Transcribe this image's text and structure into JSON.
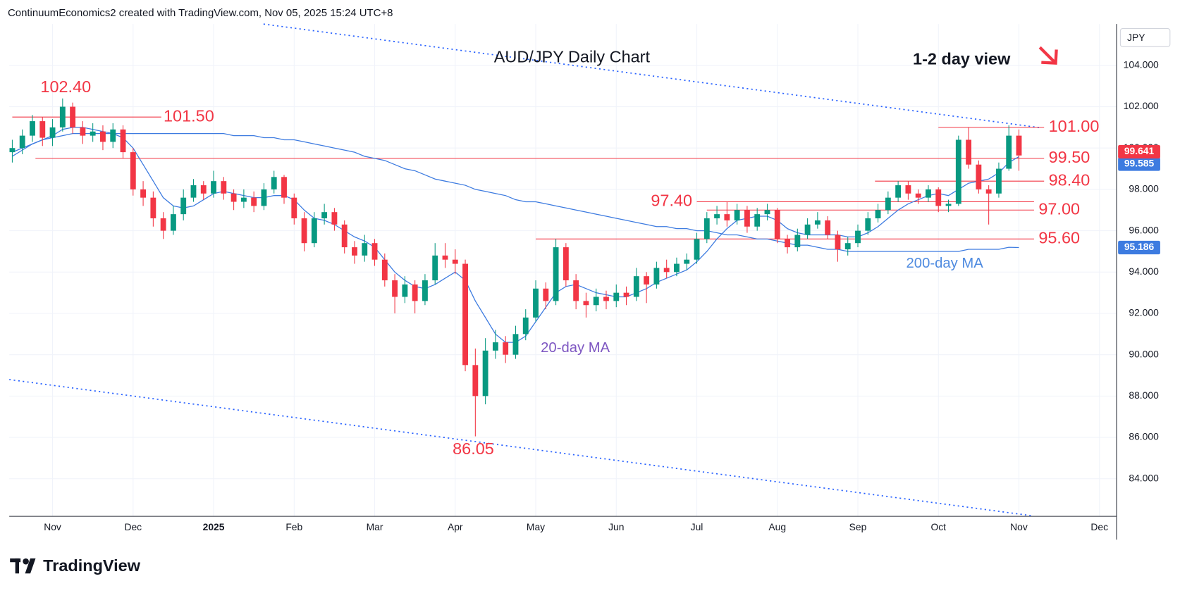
{
  "chart_data": {
    "type": "candlestick",
    "header": "ContinuumEconomics2 created with TradingView.com, Nov 05, 2025 15:24 UTC+8",
    "title": "AUD/JPY Daily Chart",
    "subtitle": "1-2 day view",
    "axis_label": "JPY",
    "brand": "TradingView",
    "ylim": [
      82.18,
      106.0
    ],
    "yticks": [
      {
        "value": 84,
        "label": "84.000"
      },
      {
        "value": 86,
        "label": "86.000"
      },
      {
        "value": 88,
        "label": "88.000"
      },
      {
        "value": 90,
        "label": "90.000"
      },
      {
        "value": 92,
        "label": "92.000"
      },
      {
        "value": 94,
        "label": "94.000"
      },
      {
        "value": 96,
        "label": "96.000"
      },
      {
        "value": 98,
        "label": "98.000"
      },
      {
        "value": 100,
        "label": "100.000"
      },
      {
        "value": 102,
        "label": "102.000"
      },
      {
        "value": 104,
        "label": "104.000"
      }
    ],
    "xlim": [
      -0.3,
      109.7
    ],
    "xticks": [
      {
        "value": 4,
        "label": "Nov"
      },
      {
        "value": 12,
        "label": "Dec"
      },
      {
        "value": 20,
        "label": "2025"
      },
      {
        "value": 28,
        "label": "Feb"
      },
      {
        "value": 36,
        "label": "Mar"
      },
      {
        "value": 44,
        "label": "Apr"
      },
      {
        "value": 52,
        "label": "May"
      },
      {
        "value": 60,
        "label": "Jun"
      },
      {
        "value": 68,
        "label": "Jul"
      },
      {
        "value": 76,
        "label": "Aug"
      },
      {
        "value": 84,
        "label": "Sep"
      },
      {
        "value": 92,
        "label": "Oct"
      },
      {
        "value": 100,
        "label": "Nov"
      },
      {
        "value": 108,
        "label": "Dec"
      }
    ],
    "grid": true,
    "up_color": "#089981",
    "down_color": "#f23645",
    "level_color": "#f23645",
    "ohlc": [
      [
        99.8,
        100.4,
        99.3,
        100.0
      ],
      [
        100.0,
        100.9,
        99.7,
        100.6
      ],
      [
        100.6,
        101.6,
        100.3,
        101.3
      ],
      [
        101.3,
        101.5,
        100.1,
        100.5
      ],
      [
        100.5,
        101.4,
        100.1,
        101.0
      ],
      [
        101.0,
        102.4,
        100.8,
        102.0
      ],
      [
        102.0,
        102.2,
        100.7,
        101.0
      ],
      [
        101.0,
        101.3,
        100.2,
        100.6
      ],
      [
        100.6,
        101.2,
        100.3,
        100.8
      ],
      [
        100.8,
        101.1,
        99.9,
        100.3
      ],
      [
        100.3,
        101.2,
        100.0,
        100.9
      ],
      [
        100.9,
        101.1,
        99.5,
        99.8
      ],
      [
        99.8,
        100.0,
        97.7,
        98.0
      ],
      [
        98.0,
        98.4,
        97.2,
        97.6
      ],
      [
        97.6,
        97.9,
        96.2,
        96.6
      ],
      [
        96.6,
        96.9,
        95.6,
        96.0
      ],
      [
        96.0,
        97.2,
        95.8,
        96.8
      ],
      [
        96.8,
        98.0,
        96.5,
        97.6
      ],
      [
        97.6,
        98.5,
        97.4,
        98.2
      ],
      [
        98.2,
        98.4,
        97.5,
        97.8
      ],
      [
        97.8,
        98.9,
        97.6,
        98.4
      ],
      [
        98.4,
        98.6,
        97.5,
        97.8
      ],
      [
        97.8,
        98.0,
        97.0,
        97.4
      ],
      [
        97.4,
        98.0,
        97.1,
        97.6
      ],
      [
        97.6,
        97.9,
        96.9,
        97.2
      ],
      [
        97.2,
        98.3,
        97.0,
        98.0
      ],
      [
        98.0,
        98.9,
        97.8,
        98.6
      ],
      [
        98.6,
        98.7,
        97.3,
        97.6
      ],
      [
        97.6,
        97.8,
        96.3,
        96.6
      ],
      [
        96.6,
        96.9,
        95.0,
        95.4
      ],
      [
        95.4,
        96.9,
        95.2,
        96.6
      ],
      [
        96.6,
        97.3,
        96.3,
        96.9
      ],
      [
        96.9,
        97.1,
        96.0,
        96.3
      ],
      [
        96.3,
        96.5,
        94.9,
        95.2
      ],
      [
        95.2,
        95.5,
        94.4,
        94.8
      ],
      [
        94.8,
        95.8,
        94.5,
        95.4
      ],
      [
        95.4,
        95.6,
        94.3,
        94.6
      ],
      [
        94.6,
        94.9,
        93.3,
        93.6
      ],
      [
        93.6,
        93.9,
        92.0,
        92.8
      ],
      [
        92.8,
        93.8,
        92.5,
        93.4
      ],
      [
        93.4,
        93.6,
        92.0,
        92.6
      ],
      [
        92.6,
        93.9,
        92.4,
        93.6
      ],
      [
        93.6,
        95.4,
        93.4,
        94.8
      ],
      [
        94.8,
        95.4,
        94.2,
        94.6
      ],
      [
        94.6,
        95.1,
        93.9,
        94.4
      ],
      [
        94.4,
        94.6,
        89.2,
        89.5
      ],
      [
        89.5,
        90.3,
        86.05,
        88.0
      ],
      [
        88.0,
        90.8,
        87.6,
        90.2
      ],
      [
        90.2,
        91.2,
        89.8,
        90.6
      ],
      [
        90.6,
        90.9,
        89.6,
        90.0
      ],
      [
        90.0,
        91.4,
        89.8,
        91.0
      ],
      [
        91.0,
        92.2,
        90.7,
        91.8
      ],
      [
        91.8,
        93.6,
        91.6,
        93.2
      ],
      [
        93.2,
        93.5,
        92.2,
        92.6
      ],
      [
        92.6,
        95.6,
        92.4,
        95.2
      ],
      [
        95.2,
        95.4,
        93.3,
        93.6
      ],
      [
        93.6,
        93.9,
        92.2,
        92.6
      ],
      [
        92.6,
        93.0,
        91.8,
        92.4
      ],
      [
        92.4,
        93.2,
        92.1,
        92.8
      ],
      [
        92.8,
        93.1,
        92.2,
        92.6
      ],
      [
        92.6,
        93.4,
        92.3,
        93.0
      ],
      [
        93.0,
        93.3,
        92.4,
        92.8
      ],
      [
        92.8,
        94.2,
        92.6,
        93.8
      ],
      [
        93.8,
        94.0,
        92.5,
        93.4
      ],
      [
        93.4,
        94.5,
        93.2,
        94.2
      ],
      [
        94.2,
        94.6,
        93.7,
        94.0
      ],
      [
        94.0,
        94.7,
        93.8,
        94.4
      ],
      [
        94.4,
        94.9,
        94.1,
        94.6
      ],
      [
        94.6,
        95.9,
        94.4,
        95.6
      ],
      [
        95.6,
        96.9,
        95.4,
        96.6
      ],
      [
        96.6,
        97.2,
        96.3,
        96.8
      ],
      [
        96.8,
        97.4,
        96.2,
        96.5
      ],
      [
        96.5,
        97.3,
        96.3,
        97.0
      ],
      [
        97.0,
        97.2,
        95.9,
        96.2
      ],
      [
        96.2,
        97.1,
        96.0,
        96.8
      ],
      [
        96.8,
        97.3,
        96.5,
        97.0
      ],
      [
        97.0,
        97.1,
        95.4,
        95.6
      ],
      [
        95.6,
        95.8,
        94.9,
        95.2
      ],
      [
        95.2,
        96.1,
        95.0,
        95.8
      ],
      [
        95.8,
        96.6,
        95.6,
        96.3
      ],
      [
        96.3,
        96.9,
        96.1,
        96.5
      ],
      [
        96.5,
        96.7,
        95.6,
        95.8
      ],
      [
        95.8,
        96.0,
        94.5,
        95.1
      ],
      [
        95.1,
        95.7,
        94.8,
        95.4
      ],
      [
        95.4,
        96.3,
        95.2,
        96.0
      ],
      [
        96.0,
        96.9,
        95.8,
        96.6
      ],
      [
        96.6,
        97.3,
        96.4,
        97.0
      ],
      [
        97.0,
        97.9,
        96.8,
        97.6
      ],
      [
        97.6,
        98.4,
        97.4,
        98.2
      ],
      [
        98.2,
        98.4,
        97.5,
        97.8
      ],
      [
        97.8,
        98.0,
        97.3,
        97.6
      ],
      [
        97.6,
        98.2,
        97.4,
        98.0
      ],
      [
        98.0,
        98.1,
        96.9,
        97.2
      ],
      [
        97.2,
        97.5,
        96.9,
        97.3
      ],
      [
        97.3,
        100.6,
        97.2,
        100.4
      ],
      [
        100.4,
        101.0,
        99.0,
        99.2
      ],
      [
        99.2,
        99.4,
        97.8,
        98.0
      ],
      [
        98.0,
        98.2,
        96.3,
        97.8
      ],
      [
        97.8,
        99.3,
        97.6,
        99.0
      ],
      [
        99.0,
        101.1,
        98.9,
        100.6
      ],
      [
        100.6,
        100.9,
        98.9,
        99.641
      ]
    ],
    "series": [
      {
        "name": "20-day MA",
        "color": "#3d7be0",
        "label_color": "#7e57c2",
        "values": [
          99.6,
          99.9,
          100.2,
          100.4,
          100.6,
          100.9,
          101.0,
          101.0,
          100.9,
          100.8,
          100.7,
          100.5,
          100.0,
          99.2,
          98.4,
          97.6,
          97.2,
          97.1,
          97.2,
          97.5,
          97.8,
          97.9,
          97.8,
          97.7,
          97.6,
          97.6,
          97.7,
          97.7,
          97.5,
          97.0,
          96.6,
          96.5,
          96.3,
          96.0,
          95.7,
          95.5,
          95.2,
          94.6,
          94.0,
          93.6,
          93.3,
          93.2,
          93.4,
          93.7,
          94.0,
          93.6,
          92.6,
          91.8,
          91.0,
          90.6,
          90.6,
          90.9,
          91.6,
          92.3,
          93.0,
          93.3,
          93.4,
          93.2,
          93.0,
          92.9,
          92.8,
          92.8,
          93.0,
          93.2,
          93.5,
          93.7,
          93.9,
          94.1,
          94.5,
          95.0,
          95.6,
          96.1,
          96.5,
          96.6,
          96.7,
          96.7,
          96.5,
          96.1,
          95.9,
          95.8,
          95.8,
          95.8,
          95.8,
          95.7,
          95.7,
          95.9,
          96.2,
          96.6,
          97.0,
          97.3,
          97.5,
          97.7,
          97.8,
          97.7,
          98.0,
          98.3,
          98.4,
          98.5,
          98.8,
          99.3,
          99.585
        ]
      },
      {
        "name": "200-day MA",
        "color": "#3d7be0",
        "label_color": "#4f8be0",
        "values": [
          99.8,
          100.0,
          100.2,
          100.4,
          100.5,
          100.6,
          100.7,
          100.7,
          100.7,
          100.7,
          100.7,
          100.7,
          100.7,
          100.7,
          100.7,
          100.7,
          100.7,
          100.7,
          100.7,
          100.7,
          100.7,
          100.7,
          100.6,
          100.6,
          100.6,
          100.5,
          100.5,
          100.4,
          100.4,
          100.3,
          100.2,
          100.1,
          100.0,
          99.9,
          99.8,
          99.6,
          99.5,
          99.4,
          99.2,
          99.0,
          98.9,
          98.7,
          98.5,
          98.4,
          98.3,
          98.2,
          98.0,
          97.9,
          97.8,
          97.7,
          97.5,
          97.4,
          97.4,
          97.3,
          97.2,
          97.1,
          97.0,
          96.9,
          96.8,
          96.7,
          96.6,
          96.5,
          96.4,
          96.3,
          96.2,
          96.2,
          96.1,
          96.1,
          96.0,
          96.0,
          95.9,
          95.8,
          95.8,
          95.7,
          95.6,
          95.6,
          95.5,
          95.4,
          95.3,
          95.3,
          95.2,
          95.1,
          95.1,
          95.0,
          95.0,
          95.0,
          95.0,
          95.0,
          95.0,
          95.0,
          95.0,
          95.0,
          95.0,
          95.0,
          95.0,
          95.1,
          95.1,
          95.1,
          95.1,
          95.2,
          95.186
        ]
      }
    ],
    "levels": [
      {
        "value": 101.5,
        "label": "101.50"
      },
      {
        "value": 101.0,
        "label": "101.00"
      },
      {
        "value": 99.5,
        "label": "99.50"
      },
      {
        "value": 98.4,
        "label": "98.40"
      },
      {
        "value": 97.4,
        "label": "97.40"
      },
      {
        "value": 97.0,
        "label": "97.00"
      },
      {
        "value": 95.6,
        "label": "95.60"
      }
    ],
    "annotations": [
      {
        "value": 102.4,
        "label": "102.40"
      },
      {
        "value": 86.05,
        "label": "86.05"
      }
    ]
  }
}
